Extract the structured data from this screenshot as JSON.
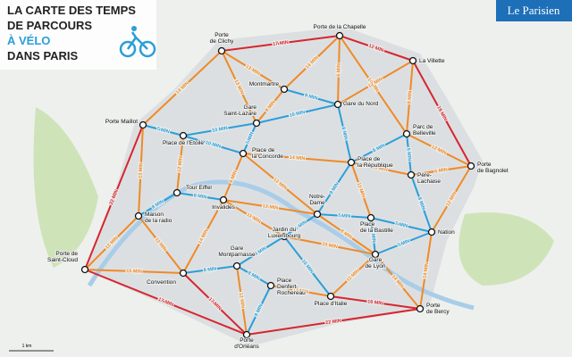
{
  "header": {
    "title_lines": [
      "LA CARTE DES TEMPS",
      "DE PARCOURS",
      "À VÉLO",
      "DANS PARIS"
    ],
    "brand": "Le Parisien"
  },
  "nodes": [
    {
      "label": [
        "Porte de la Chapelle"
      ]
    },
    {
      "label": [
        "Porte",
        "de Clichy"
      ]
    },
    {
      "label": [
        "La Villette"
      ]
    },
    {
      "label": [
        "Montmartre"
      ]
    },
    {
      "label": [
        "Gare du Nord"
      ]
    },
    {
      "label": [
        "Porte Maillot"
      ]
    },
    {
      "label": [
        "Gare",
        "Saint-Lazare"
      ]
    },
    {
      "label": [
        "Parc de",
        "Belleville"
      ]
    },
    {
      "label": [
        "Place de l'Etoile"
      ]
    },
    {
      "label": [
        "Place de",
        "la Concorde"
      ]
    },
    {
      "label": [
        "Place de",
        "la République"
      ]
    },
    {
      "label": [
        "Porte",
        "de Bagnolet"
      ]
    },
    {
      "label": [
        "Père-",
        "Lachaise"
      ]
    },
    {
      "label": [
        "Tour Eiffel"
      ]
    },
    {
      "label": [
        "Invalides"
      ]
    },
    {
      "label": [
        "Maison",
        "de la radio"
      ]
    },
    {
      "label": [
        "Notre-",
        "Dame"
      ]
    },
    {
      "label": [
        "Jardin du",
        "Luxembourg"
      ]
    },
    {
      "label": [
        "Place",
        "de la Bastille"
      ]
    },
    {
      "label": [
        "Nation"
      ]
    },
    {
      "label": [
        "Porte de",
        "Saint-Cloud"
      ]
    },
    {
      "label": [
        "Convention"
      ]
    },
    {
      "label": [
        "Gare",
        "Montparnasse"
      ]
    },
    {
      "label": [
        "Gare",
        "de Lyon"
      ]
    },
    {
      "label": [
        "Place",
        "Denfert-",
        "Rochereau"
      ]
    },
    {
      "label": [
        "Place d'Italie"
      ]
    },
    {
      "label": [
        "Porte",
        "de Bercy"
      ]
    },
    {
      "label": [
        "Porte",
        "d'Orléans"
      ]
    }
  ],
  "edges": [
    {
      "label": "17 MIN"
    },
    {
      "label": "12 MIN"
    },
    {
      "label": "19 MIN"
    },
    {
      "label": "22 MIN"
    },
    {
      "label": "17 MIN"
    },
    {
      "label": "22 MIN"
    },
    {
      "label": "16 MIN"
    },
    {
      "label": "12 MIN"
    },
    {
      "label": "14 MIN"
    },
    {
      "label": "13 MIN"
    },
    {
      "label": "13 MIN"
    },
    {
      "label": "14 MIN"
    },
    {
      "label": "6 MIN"
    },
    {
      "label": "14 MIN"
    },
    {
      "label": "12 MIN"
    },
    {
      "label": "8 MIN"
    },
    {
      "label": "9 MIN"
    },
    {
      "label": "9 MIN"
    },
    {
      "label": "10 MIN"
    },
    {
      "label": "7 MIN"
    },
    {
      "label": "10 MIN"
    },
    {
      "label": "10 MIN"
    },
    {
      "label": "7 MIN"
    },
    {
      "label": "8 MIN"
    },
    {
      "label": "14 MIN"
    },
    {
      "label": "8 MIN"
    },
    {
      "label": "5 MIN"
    },
    {
      "label": "12 MIN"
    },
    {
      "label": "9 MIN"
    },
    {
      "label": "6 MIN"
    },
    {
      "label": "13 MIN"
    },
    {
      "label": "12 MIN"
    },
    {
      "label": "8 MIN"
    },
    {
      "label": "8 MIN"
    },
    {
      "label": "12 MIN"
    },
    {
      "label": "11 MIN"
    },
    {
      "label": "15 MIN"
    },
    {
      "label": "9 MIN"
    },
    {
      "label": "13 MIN"
    },
    {
      "label": "12 MIN"
    },
    {
      "label": "9 MIN"
    },
    {
      "label": "7 MIN"
    },
    {
      "label": "11 MIN"
    },
    {
      "label": "7 MIN"
    },
    {
      "label": "8 MIN"
    },
    {
      "label": "5 MIN"
    },
    {
      "label": "11 MIN"
    },
    {
      "label": "9 MIN"
    },
    {
      "label": "8 MIN"
    },
    {
      "label": "14 MIN"
    },
    {
      "label": "8 MIN"
    },
    {
      "label": "10 MIN"
    },
    {
      "label": "9 MIN"
    },
    {
      "label": "12 MIN"
    },
    {
      "label": "17 MIN"
    },
    {
      "label": "5 MIN"
    },
    {
      "label": "11 MIN"
    },
    {
      "label": "14 MIN"
    },
    {
      "label": "7 MIN"
    },
    {
      "label": "14 MIN"
    },
    {
      "label": "11 MIN"
    },
    {
      "label": "10 MIN"
    },
    {
      "label": "8 MIN"
    }
  ],
  "scale": "1 km"
}
